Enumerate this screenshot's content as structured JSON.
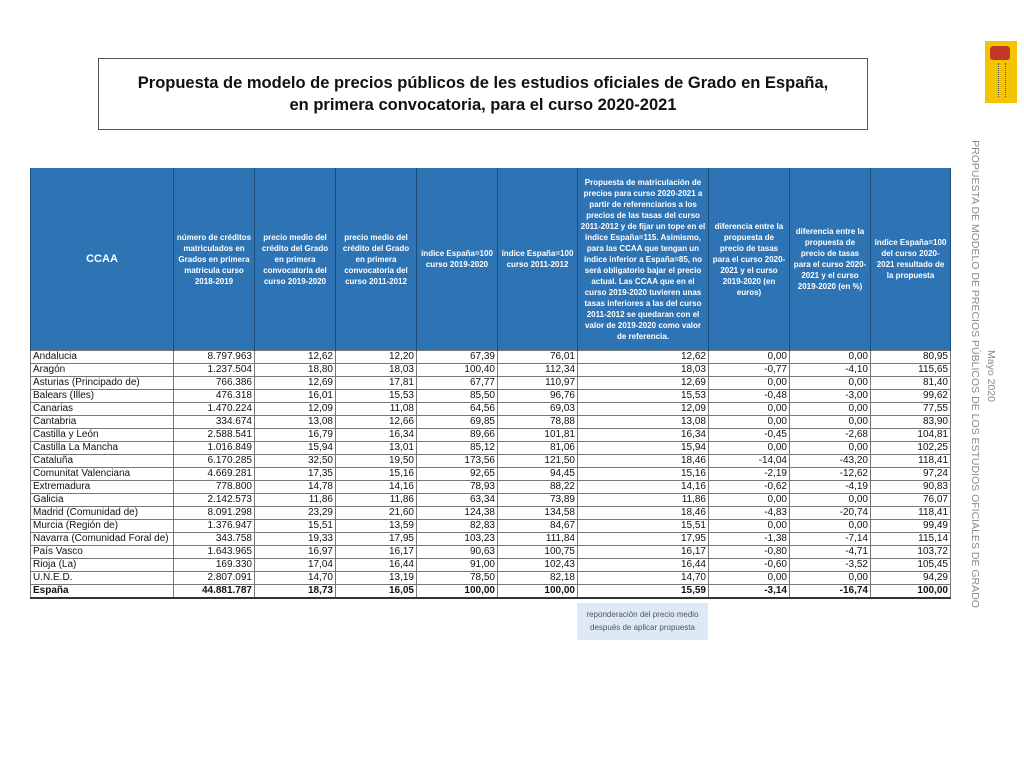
{
  "title": {
    "line1": "Propuesta de modelo de precios públicos de les estudios oficiales de Grado en España,",
    "line2": "en primera convocatoria, para el curso 2020-2021"
  },
  "side_text": {
    "main": "PROPUESTA DE MODELO DE PRECIOS PÚBLICOS DE LOS ESTUDIOS OFICIALES DE GRADO",
    "date": "Mayo 2020"
  },
  "logo": {
    "text": "MINISTERIO DE UNIVERSIDADES",
    "color": "#f5c400"
  },
  "table": {
    "headers": [
      "CCAA",
      "número de créditos matriculados en Grados en primera matricula curso 2018-2019",
      "precio medio del crédito del Grado en primera convocatoria del curso 2019-2020",
      "precio medio del crédito del Grado en primera convocatoria del curso 2011-2012",
      "índice España=100 curso 2019-2020",
      "índice España=100 curso 2011-2012",
      "Propuesta de matriculación de precios para curso 2020-2021 a partir de referenciarios a los precios de las tasas del curso 2011-2012 y de fijar un tope en el índice España=115. Asimismo, para las CCAA que tengan un índice inferior a España=85, no será obligatorio bajar el precio actual.  Las CCAA que en el curso 2019-2020 tuvieren unas tasas inferiores a las del curso 2011-2012 se quedaran con el valor de 2019-2020 como valor de referencia.",
      "diferencia entre la propuesta de precio de tasas para el curso 2020-2021 y el curso 2019-2020 (en euros)",
      "diferencia entre la propuesta de precio de tasas para el curso 2020-2021 y el curso 2019-2020 (en %)",
      "índice España=100 del curso 2020-2021 resultado de la propuesta"
    ],
    "rows": [
      [
        "Andalucia",
        "8.797.963",
        "12,62",
        "12,20",
        "67,39",
        "76,01",
        "12,62",
        "0,00",
        "0,00",
        "80,95"
      ],
      [
        "Aragón",
        "1.237.504",
        "18,80",
        "18,03",
        "100,40",
        "112,34",
        "18,03",
        "-0,77",
        "-4,10",
        "115,65"
      ],
      [
        "Asturias (Principado de)",
        "766.386",
        "12,69",
        "17,81",
        "67,77",
        "110,97",
        "12,69",
        "0,00",
        "0,00",
        "81,40"
      ],
      [
        "Balears (Illes)",
        "476.318",
        "16,01",
        "15,53",
        "85,50",
        "96,76",
        "15,53",
        "-0,48",
        "-3,00",
        "99,62"
      ],
      [
        "Canarias",
        "1.470.224",
        "12,09",
        "11,08",
        "64,56",
        "69,03",
        "12,09",
        "0,00",
        "0,00",
        "77,55"
      ],
      [
        "Cantabria",
        "334.674",
        "13,08",
        "12,66",
        "69,85",
        "78,88",
        "13,08",
        "0,00",
        "0,00",
        "83,90"
      ],
      [
        "Castilla y León",
        "2.588.541",
        "16,79",
        "16,34",
        "89,66",
        "101,81",
        "16,34",
        "-0,45",
        "-2,68",
        "104,81"
      ],
      [
        "Castilla La Mancha",
        "1.016.849",
        "15,94",
        "13,01",
        "85,12",
        "81,06",
        "15,94",
        "0,00",
        "0,00",
        "102,25"
      ],
      [
        "Cataluña",
        "6.170.285",
        "32,50",
        "19,50",
        "173,56",
        "121,50",
        "18,46",
        "-14,04",
        "-43,20",
        "118,41"
      ],
      [
        "Comunitat Valenciana",
        "4.669.281",
        "17,35",
        "15,16",
        "92,65",
        "94,45",
        "15,16",
        "-2,19",
        "-12,62",
        "97,24"
      ],
      [
        "Extremadura",
        "778.800",
        "14,78",
        "14,16",
        "78,93",
        "88,22",
        "14,16",
        "-0,62",
        "-4,19",
        "90,83"
      ],
      [
        "Galicia",
        "2.142.573",
        "11,86",
        "11,86",
        "63,34",
        "73,89",
        "11,86",
        "0,00",
        "0,00",
        "76,07"
      ],
      [
        "Madrid (Comunidad de)",
        "8.091.298",
        "23,29",
        "21,60",
        "124,38",
        "134,58",
        "18,46",
        "-4,83",
        "-20,74",
        "118,41"
      ],
      [
        "Murcia (Región de)",
        "1.376.947",
        "15,51",
        "13,59",
        "82,83",
        "84,67",
        "15,51",
        "0,00",
        "0,00",
        "99,49"
      ],
      [
        "Navarra (Comunidad Foral de)",
        "343.758",
        "19,33",
        "17,95",
        "103,23",
        "111,84",
        "17,95",
        "-1,38",
        "-7,14",
        "115,14"
      ],
      [
        "País Vasco",
        "1.643.965",
        "16,97",
        "16,17",
        "90,63",
        "100,75",
        "16,17",
        "-0,80",
        "-4,71",
        "103,72"
      ],
      [
        "Rioja (La)",
        "169.330",
        "17,04",
        "16,44",
        "91,00",
        "102,43",
        "16,44",
        "-0,60",
        "-3,52",
        "105,45"
      ],
      [
        "U.N.E.D.",
        "2.807.091",
        "14,70",
        "13,19",
        "78,50",
        "82,18",
        "14,70",
        "0,00",
        "0,00",
        "94,29"
      ]
    ],
    "total": [
      "España",
      "44.881.787",
      "18,73",
      "16,05",
      "100,00",
      "100,00",
      "15,59",
      "-3,14",
      "-16,74",
      "100,00"
    ]
  },
  "note": {
    "line1": "reponderación del precio medio",
    "line2": "después de aplicar propuesta"
  },
  "colors": {
    "header_bg": "#2e74b5",
    "note_bg": "#dde9f5"
  }
}
